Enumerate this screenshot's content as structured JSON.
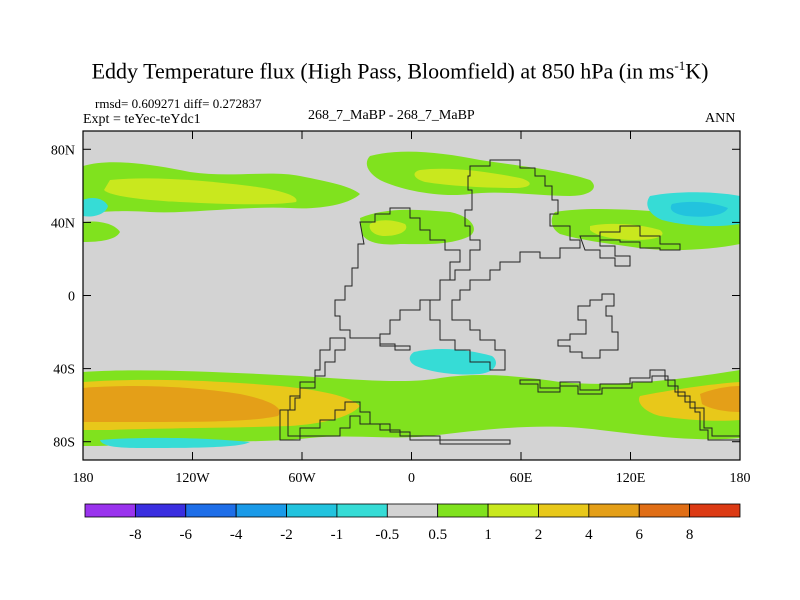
{
  "title": {
    "main": "Eddy Temperature flux (High Pass, Bloomfield) at 850 hPa (in ms",
    "superscript": "-1",
    "unit_tail": "K)"
  },
  "info": {
    "stats": "rmsd= 0.609271 diff= 0.272837",
    "expt": "Expt = teYec-teYdc1",
    "case": "268_7_MaBP - 268_7_MaBP",
    "season": "ANN"
  },
  "chart_data": {
    "type": "heatmap",
    "title": "Eddy Temperature flux (High Pass, Bloomfield) at 850 hPa (in ms-1K)",
    "x_range": [
      -180,
      180
    ],
    "y_range": [
      -90,
      90
    ],
    "x_ticks": [
      {
        "value": -180,
        "label": "180"
      },
      {
        "value": -120,
        "label": "120W"
      },
      {
        "value": -60,
        "label": "60W"
      },
      {
        "value": 0,
        "label": "0"
      },
      {
        "value": 60,
        "label": "60E"
      },
      {
        "value": 120,
        "label": "120E"
      },
      {
        "value": 180,
        "label": "180"
      }
    ],
    "y_ticks": [
      {
        "value": 80,
        "label": "80N"
      },
      {
        "value": 40,
        "label": "40N"
      },
      {
        "value": 0,
        "label": "0"
      },
      {
        "value": -40,
        "label": "40S"
      },
      {
        "value": -80,
        "label": "80S"
      }
    ],
    "colorbar": {
      "colors": [
        "#9a33ee",
        "#3a2ee0",
        "#1e6ee8",
        "#1a9ae8",
        "#22c3de",
        "#36dcd6",
        "#d3d3d3",
        "#80e21e",
        "#c9e81e",
        "#e8c81a",
        "#e49f18",
        "#e06e16",
        "#dc3a14"
      ],
      "tick_labels": [
        "-8",
        "-6",
        "-4",
        "-2",
        "-1",
        "-0.5",
        "0.5",
        "1",
        "2",
        "4",
        "6",
        "8"
      ]
    },
    "regions": [
      {
        "level": "0.5 to 1",
        "description": "northern storm track band near 60N (Pacific and Atlantic)",
        "color": "#80e21e"
      },
      {
        "level": "1 to 2",
        "description": "central northern bands near 55N and 40N",
        "color": "#c9e81e"
      },
      {
        "level": "-1 to -0.5",
        "description": "patches near 50N, 60N, 160E-140W and 40S, 20E-50E",
        "color": "#36dcd6"
      },
      {
        "level": "2 to 4",
        "description": "southern storm track 45S-75S",
        "color": "#e8c81a"
      },
      {
        "level": "4 to 6",
        "description": "core of southern storm track near 60S",
        "color": "#e49f18"
      }
    ]
  }
}
